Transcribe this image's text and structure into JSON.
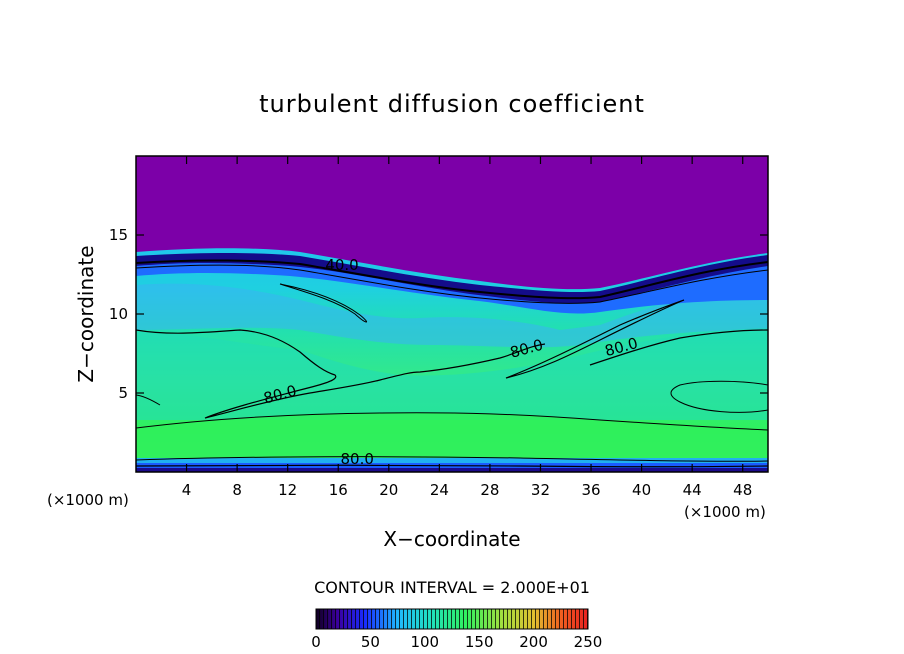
{
  "chart_data": {
    "type": "heatmap",
    "title": "turbulent diffusion coefficient",
    "xlabel": "X−coordinate",
    "ylabel": "Z−coordinate",
    "x_unit_left": "(×1000 m)",
    "x_unit_right": "(×1000 m)",
    "xlim": [
      0,
      50
    ],
    "ylim": [
      0,
      20
    ],
    "x_ticks": [
      4,
      8,
      12,
      16,
      20,
      24,
      28,
      32,
      36,
      40,
      44,
      48
    ],
    "y_ticks": [
      5,
      10,
      15
    ],
    "contour_labels": [
      {
        "text": "40.0",
        "x": 16.3,
        "y": 12.8
      },
      {
        "text": "80.0",
        "x": 11.5,
        "y": 4.6
      },
      {
        "text": "80.0",
        "x": 31.0,
        "y": 7.5
      },
      {
        "text": "80.0",
        "x": 38.5,
        "y": 7.6
      },
      {
        "text": "80.0",
        "x": 17.5,
        "y": 0.5
      }
    ],
    "contour_interval_text": "CONTOUR INTERVAL = 2.000E+01",
    "colorbar": {
      "min": 0,
      "max": 250,
      "tick_labels": [
        "0",
        "50",
        "100",
        "150",
        "200",
        "250"
      ]
    },
    "colors": {
      "top_layer": "#7c00a8",
      "dark_band": "#1a0a8c",
      "blue": "#1f6fff",
      "light_blue": "#2fb8f2",
      "cyan": "#19c8f0",
      "aqua_green": "#22e0b0",
      "green": "#3df06a",
      "bright_green": "#2ef050"
    }
  }
}
